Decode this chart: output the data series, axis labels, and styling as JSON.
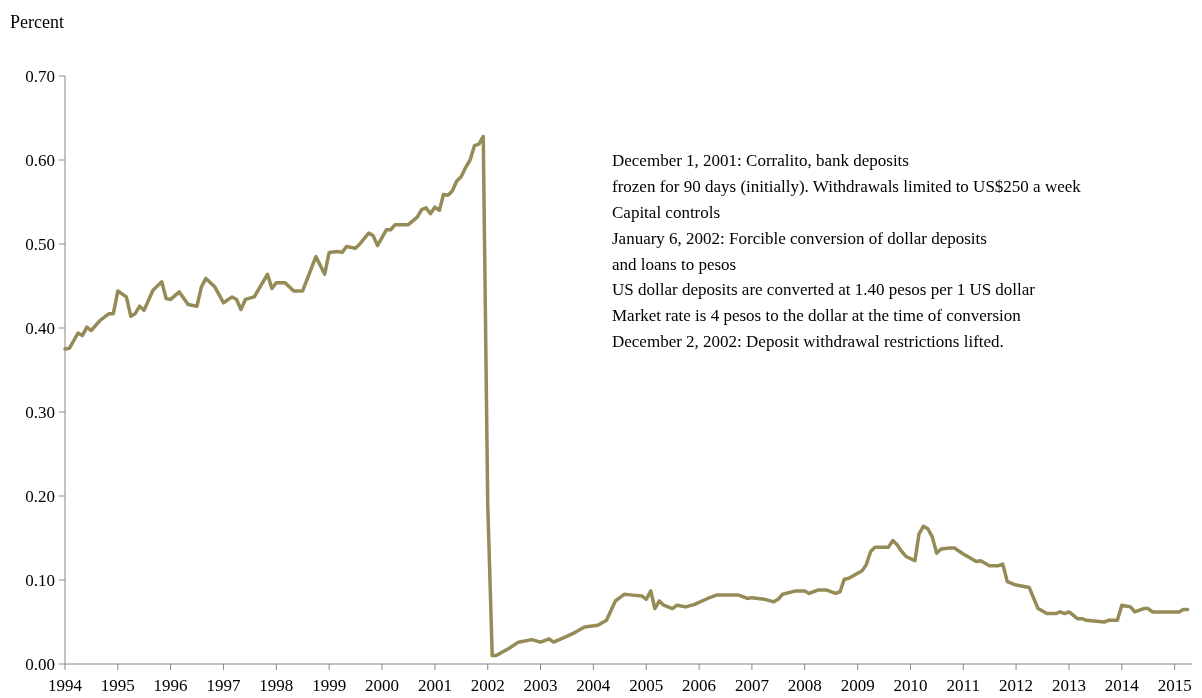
{
  "chart_data": {
    "type": "line",
    "ylabel": "Percent",
    "x": [
      "1994-01",
      "1994-02",
      "1994-04",
      "1994-05",
      "1994-06",
      "1994-07",
      "1994-09",
      "1994-11",
      "1994-12",
      "1995-01",
      "1995-03",
      "1995-04",
      "1995-05",
      "1995-06",
      "1995-07",
      "1995-09",
      "1995-11",
      "1995-12",
      "1996-01",
      "1996-03",
      "1996-05",
      "1996-07",
      "1996-08",
      "1996-09",
      "1996-11",
      "1997-01",
      "1997-03",
      "1997-04",
      "1997-05",
      "1997-06",
      "1997-08",
      "1997-11",
      "1997-12",
      "1998-01",
      "1998-03",
      "1998-05",
      "1998-07",
      "1998-10",
      "1998-12",
      "1999-01",
      "1999-03",
      "1999-04",
      "1999-05",
      "1999-07",
      "1999-08",
      "1999-10",
      "1999-11",
      "1999-12",
      "2000-02",
      "2000-03",
      "2000-04",
      "2000-07",
      "2000-09",
      "2000-10",
      "2000-11",
      "2000-12",
      "2001-01",
      "2001-02",
      "2001-03",
      "2001-04",
      "2001-05",
      "2001-06",
      "2001-07",
      "2001-08",
      "2001-09",
      "2001-10",
      "2001-11",
      "2001-12",
      "2002-01",
      "2002-02",
      "2002-03",
      "2002-06",
      "2002-08",
      "2002-11",
      "2003-01",
      "2003-03",
      "2003-04",
      "2003-07",
      "2003-09",
      "2003-11",
      "2004-02",
      "2004-04",
      "2004-06",
      "2004-08",
      "2004-10",
      "2004-12",
      "2005-01",
      "2005-02",
      "2005-03",
      "2005-04",
      "2005-05",
      "2005-07",
      "2005-08",
      "2005-10",
      "2005-12",
      "2006-03",
      "2006-05",
      "2006-10",
      "2006-12",
      "2007-01",
      "2007-04",
      "2007-06",
      "2007-07",
      "2007-08",
      "2007-11",
      "2008-01",
      "2008-02",
      "2008-04",
      "2008-06",
      "2008-08",
      "2008-09",
      "2008-10",
      "2008-11",
      "2009-01",
      "2009-02",
      "2009-03",
      "2009-04",
      "2009-05",
      "2009-08",
      "2009-09",
      "2009-10",
      "2009-11",
      "2009-12",
      "2010-02",
      "2010-03",
      "2010-04",
      "2010-05",
      "2010-06",
      "2010-07",
      "2010-08",
      "2010-10",
      "2010-11",
      "2011-01",
      "2011-04",
      "2011-05",
      "2011-07",
      "2011-09",
      "2011-10",
      "2011-11",
      "2012-01",
      "2012-04",
      "2012-06",
      "2012-08",
      "2012-10",
      "2012-11",
      "2012-12",
      "2013-01",
      "2013-03",
      "2013-04",
      "2013-05",
      "2013-09",
      "2013-10",
      "2013-12",
      "2014-01",
      "2014-03",
      "2014-04",
      "2014-06",
      "2014-07",
      "2014-08",
      "2015-02",
      "2015-03",
      "2015-04"
    ],
    "series": [
      {
        "color": "#958b57",
        "values": [
          0.375,
          0.376,
          0.394,
          0.391,
          0.401,
          0.397,
          0.409,
          0.417,
          0.417,
          0.444,
          0.437,
          0.414,
          0.417,
          0.426,
          0.421,
          0.445,
          0.455,
          0.435,
          0.434,
          0.443,
          0.428,
          0.426,
          0.449,
          0.459,
          0.449,
          0.43,
          0.437,
          0.434,
          0.422,
          0.434,
          0.437,
          0.464,
          0.447,
          0.454,
          0.454,
          0.444,
          0.444,
          0.485,
          0.464,
          0.49,
          0.491,
          0.49,
          0.497,
          0.495,
          0.5,
          0.513,
          0.51,
          0.498,
          0.517,
          0.517,
          0.523,
          0.523,
          0.532,
          0.541,
          0.543,
          0.536,
          0.544,
          0.54,
          0.559,
          0.558,
          0.563,
          0.575,
          0.58,
          0.591,
          0.6,
          0.617,
          0.619,
          0.628,
          0.19,
          0.01,
          0.01,
          0.019,
          0.026,
          0.029,
          0.026,
          0.03,
          0.026,
          0.033,
          0.038,
          0.044,
          0.046,
          0.052,
          0.075,
          0.083,
          0.082,
          0.081,
          0.077,
          0.087,
          0.066,
          0.075,
          0.07,
          0.066,
          0.07,
          0.068,
          0.071,
          0.078,
          0.082,
          0.082,
          0.078,
          0.079,
          0.077,
          0.074,
          0.077,
          0.083,
          0.087,
          0.087,
          0.084,
          0.088,
          0.088,
          0.084,
          0.086,
          0.101,
          0.102,
          0.108,
          0.111,
          0.118,
          0.134,
          0.139,
          0.139,
          0.147,
          0.142,
          0.134,
          0.128,
          0.123,
          0.155,
          0.164,
          0.161,
          0.151,
          0.132,
          0.137,
          0.138,
          0.138,
          0.131,
          0.122,
          0.123,
          0.117,
          0.117,
          0.119,
          0.098,
          0.094,
          0.091,
          0.066,
          0.06,
          0.06,
          0.062,
          0.06,
          0.062,
          0.054,
          0.054,
          0.052,
          0.05,
          0.052,
          0.052,
          0.07,
          0.068,
          0.062,
          0.066,
          0.066,
          0.062,
          0.062,
          0.065,
          0.065
        ]
      }
    ],
    "xlim": [
      "1994-01",
      "2015-05"
    ],
    "xticks": [
      "1994",
      "1995",
      "1996",
      "1997",
      "1998",
      "1999",
      "2000",
      "2001",
      "2002",
      "2003",
      "2004",
      "2005",
      "2006",
      "2007",
      "2008",
      "2009",
      "2010",
      "2011",
      "2012",
      "2013",
      "2014",
      "2015"
    ],
    "ylim": [
      0,
      0.7
    ],
    "yticks": [
      {
        "value": 0,
        "label": "0.00"
      },
      {
        "value": 0.1,
        "label": "0.10"
      },
      {
        "value": 0.2,
        "label": "0.20"
      },
      {
        "value": 0.3,
        "label": "0.30"
      },
      {
        "value": 0.4,
        "label": "0.40"
      },
      {
        "value": 0.5,
        "label": "0.50"
      },
      {
        "value": 0.6,
        "label": "0.60"
      },
      {
        "value": 0.7,
        "label": "0.70"
      }
    ],
    "marker": "none",
    "line_style": "solid",
    "annotations": [
      "December 1, 2001: Corralito, bank deposits",
      "frozen for 90 days (initially). Withdrawals limited to US$250 a week",
      "Capital controls",
      "January 6, 2002: Forcible conversion of dollar deposits",
      "and loans to pesos",
      "US dollar deposits are converted at 1.40 pesos per 1 US dollar",
      "Market rate is 4 pesos to the dollar at the time of conversion",
      "December 2, 2002: Deposit withdrawal restrictions lifted."
    ]
  }
}
